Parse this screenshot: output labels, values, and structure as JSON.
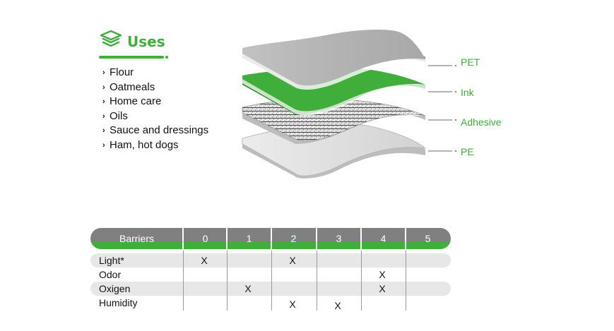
{
  "uses": {
    "title": "Uses",
    "icon": "stacked-layers-icon",
    "items": [
      "Flour",
      "Oatmeals",
      "Home care",
      "Oils",
      "Sauce and dressings",
      "Ham, hot dogs"
    ]
  },
  "layers": [
    {
      "label": "PET",
      "color": "#b5b5b5"
    },
    {
      "label": "Ink",
      "color": "#3fae3a"
    },
    {
      "label": "Adhesive",
      "color": "#d4d4d4"
    },
    {
      "label": "PE",
      "color": "#dcdcdc"
    }
  ],
  "table": {
    "header_label": "Barriers",
    "columns": [
      "0",
      "1",
      "2",
      "3",
      "4",
      "5"
    ],
    "rows": [
      {
        "label": "Light*",
        "marks": [
          "X",
          "",
          "X",
          "",
          "",
          ""
        ]
      },
      {
        "label": "Odor",
        "marks": [
          "",
          "",
          "",
          "",
          "X",
          ""
        ]
      },
      {
        "label": "Oxigen",
        "marks": [
          "",
          "X",
          "",
          "",
          "X",
          ""
        ]
      },
      {
        "label": "Humidity",
        "marks": [
          "",
          "",
          "X",
          "X",
          "",
          ""
        ]
      }
    ]
  },
  "colors": {
    "accent": "#3fae3a",
    "header_gray": "#808080",
    "stripe": "#e7e7e7"
  }
}
